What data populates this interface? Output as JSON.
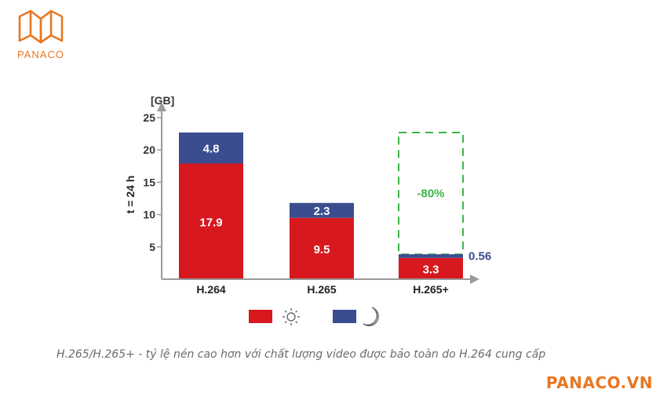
{
  "brand": {
    "logo_text": "PANACO",
    "website": "PANACO.VN",
    "color": "#e87722"
  },
  "caption": "H.265/H.265+ - tỷ lệ nén cao hơn với chất lượng video được bảo toàn do H.264 cung cấp",
  "chart_data": {
    "type": "bar",
    "stacked": true,
    "unit_label": "[GB]",
    "ylabel": "t = 24 h",
    "ylim": [
      0,
      25
    ],
    "yticks": [
      5,
      10,
      15,
      20,
      25
    ],
    "categories": [
      "H.264",
      "H.265",
      "H.265+"
    ],
    "series": [
      {
        "name": "day",
        "legend_icon": "sun-icon",
        "color": "#d7191f",
        "values": [
          17.9,
          9.5,
          3.3
        ],
        "labels": [
          "17.9",
          "9.5",
          "3.3"
        ]
      },
      {
        "name": "night",
        "legend_icon": "moon-icon",
        "color": "#3a4e8f",
        "values": [
          4.8,
          2.3,
          0.56
        ],
        "labels": [
          "4.8",
          "2.3",
          "0.56"
        ]
      }
    ],
    "annotation": {
      "text": "-80%",
      "category": "H.265+",
      "reference_total": 22.7,
      "color": "#3bb54a",
      "style": "dashed-outline"
    },
    "grid": false,
    "legend_position": "bottom"
  }
}
